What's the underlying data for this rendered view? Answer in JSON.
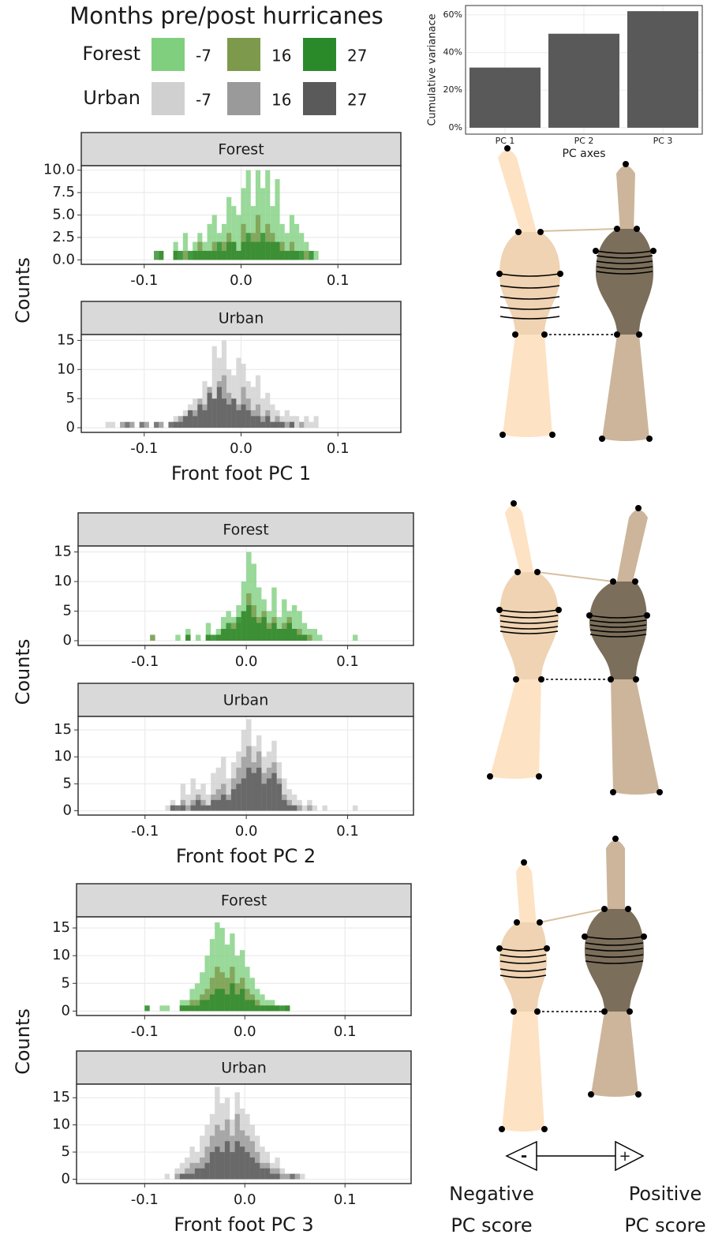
{
  "legend": {
    "title": "Months pre/post hurricanes",
    "groups": [
      {
        "name": "Forest",
        "items": [
          {
            "label": "-7",
            "color": "#7fcf7f"
          },
          {
            "label": "16",
            "color": "#7d9a4c"
          },
          {
            "label": "27",
            "color": "#2a8a2a"
          }
        ]
      },
      {
        "name": "Urban",
        "items": [
          {
            "label": "-7",
            "color": "#d0d0d0"
          },
          {
            "label": "16",
            "color": "#9a9a9a"
          },
          {
            "label": "27",
            "color": "#5a5a5a"
          }
        ]
      }
    ]
  },
  "scale": {
    "negative": [
      "Negative",
      "PC score"
    ],
    "positive": [
      "Positive",
      "PC score"
    ],
    "minus": "-",
    "plus": "+"
  },
  "chart_data": [
    {
      "type": "bar",
      "xlabel": "PC axes",
      "ylabel": "Cumulative varianace",
      "categories": [
        "PC 1",
        "PC 2",
        "PC 3"
      ],
      "values": [
        32,
        50,
        62
      ],
      "color": "#595959",
      "ylim": [
        -3.4,
        65
      ],
      "yticks": [
        {
          "value": 0,
          "label": "0%"
        },
        {
          "value": 20,
          "label": "20%"
        },
        {
          "value": 40,
          "label": "40%"
        },
        {
          "value": 60,
          "label": "60%"
        }
      ],
      "grid": true
    },
    {
      "type": "histogram",
      "title": "Forest",
      "ylabel": "Counts",
      "bins": [
        -0.09,
        -0.085,
        -0.08,
        -0.075,
        -0.07,
        -0.065,
        -0.06,
        -0.055,
        -0.05,
        -0.045,
        -0.04,
        -0.035,
        -0.03,
        -0.025,
        -0.02,
        -0.015,
        -0.01,
        -0.005,
        0,
        0.005,
        0.01,
        0.015,
        0.02,
        0.025,
        0.03,
        0.035,
        0.04,
        0.045,
        0.05,
        0.055,
        0.06,
        0.065,
        0.07,
        0.075,
        0.08,
        0.085
      ],
      "series": [
        {
          "color": "#7fcf7f",
          "values": [
            0,
            0,
            0,
            0,
            2,
            1,
            3,
            1,
            2,
            3,
            2,
            4,
            5,
            3,
            4,
            7,
            6,
            5,
            8,
            10,
            6,
            10,
            8,
            10,
            6,
            9,
            4,
            3,
            5,
            4,
            3,
            2,
            1,
            1,
            0
          ]
        },
        {
          "color": "#7d9a4c",
          "values": [
            0,
            1,
            0,
            0,
            1,
            0,
            1,
            0,
            1,
            2,
            1,
            1,
            2,
            1,
            2,
            3,
            2,
            1,
            4,
            2,
            3,
            5,
            2,
            4,
            3,
            2,
            2,
            1,
            2,
            1,
            0,
            1,
            0,
            0,
            0
          ]
        },
        {
          "color": "#2a8a2a",
          "values": [
            1,
            1,
            0,
            0,
            1,
            1,
            0,
            1,
            1,
            1,
            1,
            1,
            1,
            2,
            1,
            2,
            2,
            1,
            2,
            3,
            2,
            2,
            3,
            2,
            2,
            2,
            1,
            1,
            1,
            1,
            1,
            0,
            1,
            0,
            0
          ]
        }
      ],
      "xlim": [
        -0.165,
        0.165
      ],
      "xticks": [
        -0.1,
        {
          "value": 0,
          "label": "0.0"
        },
        0.1
      ],
      "ylim": [
        -0.5,
        10.5
      ],
      "yticks": [
        {
          "value": 0,
          "label": "0.0"
        },
        2.5,
        {
          "value": 5,
          "label": "5.0"
        },
        7.5,
        {
          "value": 10,
          "label": "10.0"
        }
      ],
      "grid": true
    },
    {
      "type": "histogram",
      "title": "Urban",
      "xlabel": "Front foot PC 1",
      "bins": [
        -0.14,
        -0.135,
        -0.13,
        -0.125,
        -0.12,
        -0.115,
        -0.11,
        -0.105,
        -0.1,
        -0.095,
        -0.09,
        -0.085,
        -0.08,
        -0.075,
        -0.07,
        -0.065,
        -0.06,
        -0.055,
        -0.05,
        -0.045,
        -0.04,
        -0.035,
        -0.03,
        -0.025,
        -0.02,
        -0.015,
        -0.01,
        -0.005,
        0,
        0.005,
        0.01,
        0.015,
        0.02,
        0.025,
        0.03,
        0.035,
        0.04,
        0.045,
        0.05,
        0.055,
        0.06,
        0.065,
        0.07,
        0.075,
        0.08,
        0.085
      ],
      "series": [
        {
          "color": "#d0d0d0",
          "values": [
            1,
            1,
            0,
            1,
            0,
            1,
            0,
            0,
            1,
            0,
            0,
            1,
            0,
            1,
            2,
            2,
            3,
            4,
            5,
            4,
            8,
            7,
            14,
            12,
            15,
            10,
            9,
            12,
            11,
            8,
            7,
            9,
            5,
            6,
            4,
            3,
            2,
            3,
            2,
            2,
            1,
            2,
            1,
            2,
            0
          ]
        },
        {
          "color": "#9a9a9a",
          "values": [
            0,
            0,
            0,
            1,
            0,
            1,
            0,
            0,
            1,
            0,
            0,
            1,
            0,
            0,
            1,
            2,
            2,
            3,
            3,
            5,
            4,
            7,
            5,
            8,
            9,
            6,
            5,
            4,
            7,
            5,
            3,
            4,
            2,
            3,
            1,
            2,
            1,
            1,
            1,
            0,
            1,
            0,
            0,
            0,
            0
          ]
        },
        {
          "color": "#5a5a5a",
          "values": [
            0,
            0,
            0,
            0,
            1,
            0,
            0,
            1,
            0,
            0,
            1,
            0,
            0,
            1,
            1,
            1,
            2,
            3,
            2,
            4,
            3,
            6,
            5,
            7,
            5,
            4,
            5,
            3,
            4,
            3,
            2,
            2,
            1,
            2,
            1,
            1,
            1,
            0,
            1,
            0,
            0,
            0,
            0,
            0,
            0
          ]
        }
      ],
      "xlim": [
        -0.165,
        0.165
      ],
      "xticks": [
        -0.1,
        {
          "value": 0,
          "label": "0.0"
        },
        0.1
      ],
      "ylim": [
        -0.8,
        16
      ],
      "yticks": [
        0,
        5,
        10,
        15
      ],
      "grid": true
    },
    {
      "type": "histogram",
      "title": "Forest",
      "ylabel": "Counts",
      "bins": [
        -0.095,
        -0.09,
        -0.085,
        -0.08,
        -0.075,
        -0.07,
        -0.065,
        -0.06,
        -0.055,
        -0.05,
        -0.045,
        -0.04,
        -0.035,
        -0.03,
        -0.025,
        -0.02,
        -0.015,
        -0.01,
        -0.005,
        0,
        0.005,
        0.01,
        0.015,
        0.02,
        0.025,
        0.03,
        0.035,
        0.04,
        0.045,
        0.05,
        0.055,
        0.06,
        0.065,
        0.07,
        0.075,
        0.08,
        0.085,
        0.09,
        0.095,
        0.1,
        0.105,
        0.11
      ],
      "series": [
        {
          "color": "#7fcf7f",
          "values": [
            1,
            0,
            0,
            0,
            0,
            1,
            0,
            2,
            0,
            1,
            0,
            3,
            1,
            2,
            4,
            5,
            4,
            6,
            10,
            15,
            13,
            9,
            7,
            5,
            9,
            4,
            7,
            5,
            6,
            5,
            3,
            2,
            2,
            1,
            0,
            0,
            0,
            0,
            0,
            0,
            1
          ]
        },
        {
          "color": "#7d9a4c",
          "values": [
            1,
            0,
            0,
            0,
            0,
            0,
            0,
            1,
            0,
            0,
            0,
            1,
            0,
            1,
            2,
            2,
            3,
            3,
            5,
            8,
            6,
            4,
            5,
            3,
            4,
            2,
            3,
            4,
            2,
            2,
            1,
            1,
            0,
            0,
            0,
            0,
            0,
            0,
            0,
            0,
            0
          ]
        },
        {
          "color": "#2a8a2a",
          "values": [
            0,
            0,
            0,
            0,
            0,
            0,
            0,
            1,
            0,
            0,
            0,
            1,
            1,
            1,
            2,
            3,
            2,
            4,
            5,
            6,
            4,
            3,
            4,
            2,
            3,
            2,
            2,
            3,
            2,
            1,
            1,
            0,
            0,
            0,
            0,
            0,
            0,
            0,
            0,
            0,
            0
          ]
        }
      ],
      "xlim": [
        -0.166,
        0.165
      ],
      "xticks": [
        -0.1,
        {
          "value": 0,
          "label": "0.0"
        },
        0.1
      ],
      "ylim": [
        -0.8,
        16
      ],
      "yticks": [
        0,
        5,
        10,
        15
      ],
      "grid": true
    },
    {
      "type": "histogram",
      "title": "Urban",
      "xlabel": "Front foot PC 2",
      "bins": [
        -0.08,
        -0.075,
        -0.07,
        -0.065,
        -0.06,
        -0.055,
        -0.05,
        -0.045,
        -0.04,
        -0.035,
        -0.03,
        -0.025,
        -0.02,
        -0.015,
        -0.01,
        -0.005,
        0,
        0.005,
        0.01,
        0.015,
        0.02,
        0.025,
        0.03,
        0.035,
        0.04,
        0.045,
        0.05,
        0.055,
        0.06,
        0.065,
        0.07,
        0.075,
        0.08,
        0.085,
        0.09,
        0.095,
        0.1,
        0.105,
        0.11
      ],
      "series": [
        {
          "color": "#d0d0d0",
          "values": [
            1,
            2,
            1,
            5,
            3,
            6,
            4,
            5,
            3,
            7,
            8,
            10,
            6,
            9,
            11,
            15,
            17,
            12,
            14,
            10,
            11,
            13,
            9,
            6,
            4,
            3,
            2,
            1,
            2,
            1,
            0,
            1,
            0,
            0,
            0,
            0,
            0,
            1
          ]
        },
        {
          "color": "#9a9a9a",
          "values": [
            0,
            1,
            0,
            2,
            1,
            2,
            3,
            2,
            1,
            3,
            4,
            5,
            3,
            6,
            8,
            10,
            12,
            9,
            11,
            7,
            8,
            9,
            6,
            3,
            2,
            1,
            1,
            0,
            1,
            0,
            0,
            0,
            0,
            0,
            0,
            0,
            0,
            0
          ]
        },
        {
          "color": "#5a5a5a",
          "values": [
            0,
            1,
            1,
            1,
            0,
            1,
            2,
            1,
            1,
            2,
            2,
            3,
            2,
            4,
            5,
            6,
            8,
            7,
            8,
            5,
            6,
            7,
            5,
            2,
            1,
            1,
            0,
            0,
            0,
            0,
            0,
            0,
            0,
            0,
            0,
            0,
            0,
            0
          ]
        }
      ],
      "xlim": [
        -0.166,
        0.165
      ],
      "xticks": [
        -0.1,
        {
          "value": 0,
          "label": "0.0"
        },
        0.1
      ],
      "ylim": [
        -0.8,
        17.5
      ],
      "yticks": [
        0,
        5,
        10,
        15
      ],
      "grid": true
    },
    {
      "type": "histogram",
      "title": "Forest",
      "ylabel": "Counts",
      "bins": [
        -0.1,
        -0.095,
        -0.09,
        -0.085,
        -0.08,
        -0.075,
        -0.07,
        -0.065,
        -0.06,
        -0.055,
        -0.05,
        -0.045,
        -0.04,
        -0.035,
        -0.03,
        -0.025,
        -0.02,
        -0.015,
        -0.01,
        -0.005,
        0,
        0.005,
        0.01,
        0.015,
        0.02,
        0.025,
        0.03,
        0.035,
        0.04,
        0.045,
        0.05,
        0.055
      ],
      "series": [
        {
          "color": "#7fcf7f",
          "values": [
            1,
            0,
            0,
            1,
            1,
            0,
            0,
            2,
            2,
            4,
            5,
            7,
            10,
            13,
            16,
            15,
            12,
            14,
            10,
            11,
            8,
            6,
            4,
            3,
            2,
            2,
            1,
            1,
            1,
            0,
            0
          ]
        },
        {
          "color": "#7d9a4c",
          "values": [
            0,
            0,
            0,
            0,
            0,
            0,
            0,
            1,
            1,
            2,
            2,
            3,
            4,
            6,
            8,
            7,
            6,
            8,
            5,
            6,
            4,
            3,
            2,
            1,
            1,
            1,
            1,
            0,
            1,
            0,
            0
          ]
        },
        {
          "color": "#2a8a2a",
          "values": [
            1,
            0,
            0,
            0,
            0,
            0,
            0,
            1,
            1,
            1,
            1,
            2,
            2,
            3,
            4,
            4,
            3,
            5,
            3,
            4,
            2,
            2,
            1,
            1,
            1,
            1,
            1,
            1,
            1,
            0,
            0
          ]
        }
      ],
      "xlim": [
        -0.168,
        0.166
      ],
      "xticks": [
        -0.1,
        {
          "value": 0,
          "label": "0.0"
        },
        0.1
      ],
      "ylim": [
        -0.8,
        17
      ],
      "yticks": [
        0,
        5,
        10,
        15
      ],
      "grid": true
    },
    {
      "type": "histogram",
      "title": "Urban",
      "xlabel": "Front foot PC 3",
      "bins": [
        -0.08,
        -0.075,
        -0.07,
        -0.065,
        -0.06,
        -0.055,
        -0.05,
        -0.045,
        -0.04,
        -0.035,
        -0.03,
        -0.025,
        -0.02,
        -0.015,
        -0.01,
        -0.005,
        0,
        0.005,
        0.01,
        0.015,
        0.02,
        0.025,
        0.03,
        0.035,
        0.04,
        0.045,
        0.05,
        0.055,
        0.06,
        0.065
      ],
      "series": [
        {
          "color": "#d0d0d0",
          "values": [
            1,
            0,
            2,
            3,
            4,
            6,
            5,
            8,
            10,
            12,
            17,
            14,
            15,
            11,
            16,
            13,
            12,
            10,
            8,
            6,
            5,
            3,
            4,
            2,
            1,
            1,
            1,
            1,
            0
          ]
        },
        {
          "color": "#9a9a9a",
          "values": [
            0,
            0,
            1,
            1,
            2,
            3,
            3,
            4,
            6,
            8,
            10,
            9,
            11,
            8,
            12,
            9,
            8,
            7,
            5,
            3,
            3,
            2,
            2,
            1,
            1,
            0,
            1,
            0,
            0
          ]
        },
        {
          "color": "#5a5a5a",
          "values": [
            0,
            0,
            0,
            1,
            1,
            1,
            2,
            2,
            3,
            5,
            6,
            5,
            7,
            5,
            7,
            6,
            5,
            4,
            3,
            2,
            2,
            1,
            1,
            0,
            0,
            1,
            0,
            0,
            0
          ]
        }
      ],
      "xlim": [
        -0.168,
        0.166
      ],
      "xticks": [
        -0.1,
        {
          "value": 0,
          "label": "0.0"
        },
        0.1
      ],
      "ylim": [
        -0.8,
        17.5
      ],
      "yticks": [
        0,
        5,
        10,
        15
      ],
      "grid": true
    }
  ]
}
